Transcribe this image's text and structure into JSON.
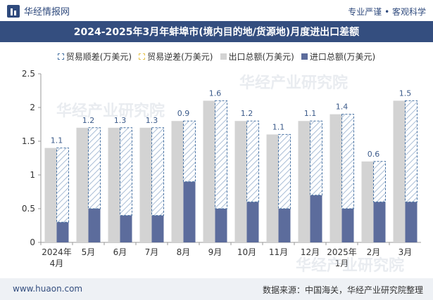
{
  "header": {
    "brand": "华经情报网",
    "slogan": "专业严谨 • 客观科学"
  },
  "footer": {
    "site": "www.huaon.com",
    "source": "数据来源：中国海关，华经产业研究院整理"
  },
  "watermark": "华经产业研究院",
  "colors": {
    "export": "#d3d3d3",
    "import": "#5c6c9c",
    "surplus_border": "#4a74a4",
    "deficit_border": "#e6c34d",
    "title_bar": "#344e7f"
  },
  "chart_data": {
    "type": "bar",
    "title": "2024-2025年3月年蚌埠市(境内目的地/货源地)月度进出口差额",
    "categories": [
      "2024年4月",
      "5月",
      "6月",
      "7月",
      "8月",
      "9月",
      "10月",
      "11月",
      "12月",
      "2025年1月",
      "2月",
      "3月"
    ],
    "series": [
      {
        "name": "贸易顺差(万美元)",
        "values": [
          1.1,
          1.2,
          1.3,
          1.3,
          0.9,
          1.6,
          1.2,
          1.1,
          1.1,
          1.4,
          0.6,
          1.5
        ]
      },
      {
        "name": "贸易逆差(万美元)",
        "values": [
          0,
          0,
          0,
          0,
          0,
          0,
          0,
          0,
          0,
          0,
          0,
          0
        ]
      },
      {
        "name": "出口总额(万美元)",
        "values": [
          1.4,
          1.7,
          1.7,
          1.7,
          1.8,
          2.1,
          1.8,
          1.6,
          1.8,
          1.9,
          1.2,
          2.1
        ]
      },
      {
        "name": "进口总额(万美元)",
        "values": [
          0.3,
          0.5,
          0.4,
          0.4,
          0.9,
          0.5,
          0.6,
          0.5,
          0.7,
          0.5,
          0.6,
          0.6
        ]
      }
    ],
    "data_labels": [
      "1.1",
      "1.2",
      "1.3",
      "1.3",
      "0.9",
      "1.6",
      "1.2",
      "1.1",
      "1.1",
      "1.4",
      "0.6",
      "1.5"
    ],
    "y_ticks": [
      "0",
      "0.5",
      "1",
      "1.5",
      "2",
      "2.5"
    ],
    "ylim": [
      0,
      2.5
    ],
    "legend_position": "top-center",
    "grid": false
  }
}
